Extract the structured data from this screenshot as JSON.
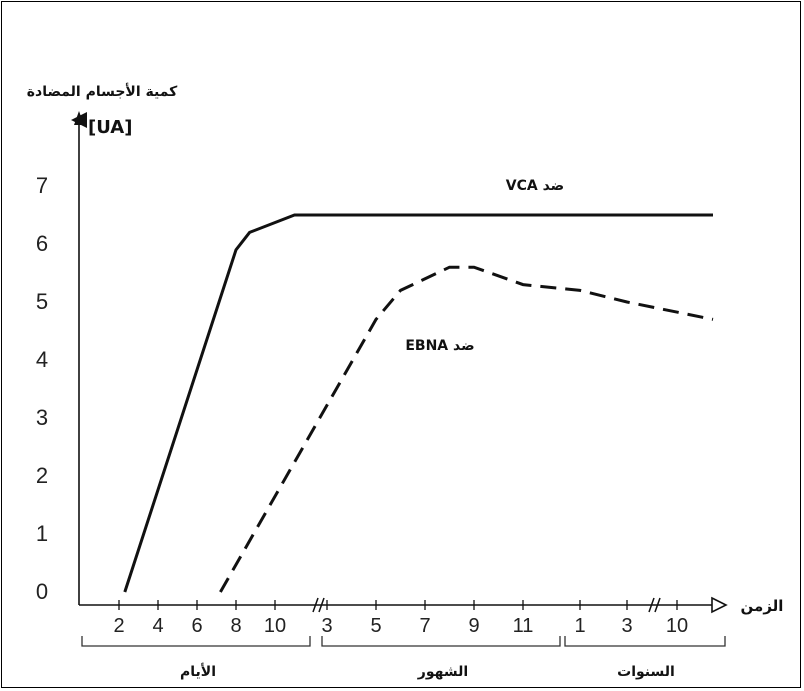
{
  "chart_data": {
    "type": "line",
    "ylabel": "كمية الأجسام المضادة",
    "yunit": "[UA]",
    "xlabel": "الزمن",
    "ylim": [
      0,
      7
    ],
    "yticks": [
      0,
      1,
      2,
      3,
      4,
      5,
      6,
      7
    ],
    "x_segments": [
      {
        "name": "الأيام",
        "ticks": [
          "2",
          "4",
          "6",
          "8",
          "10"
        ]
      },
      {
        "name": "الشهور",
        "ticks": [
          "3",
          "5",
          "7",
          "9",
          "11"
        ]
      },
      {
        "name": "السنوات",
        "ticks": [
          "1",
          "3",
          "10"
        ]
      }
    ],
    "series": [
      {
        "name": "ضد VCA",
        "style": "solid",
        "points": [
          [
            2.3,
            0
          ],
          [
            8,
            5.9
          ],
          [
            8.7,
            6.2
          ],
          [
            11,
            6.5
          ],
          [
            12,
            6.5
          ],
          [
            10.8,
            6.5
          ]
        ]
      },
      {
        "name": "ضد EBNA",
        "style": "dashed",
        "points": [
          [
            7.2,
            0
          ],
          [
            5,
            4.7
          ],
          [
            6,
            5.2
          ],
          [
            8,
            5.6
          ],
          [
            9,
            5.6
          ],
          [
            11,
            5.3
          ],
          [
            1,
            5.2
          ],
          [
            3,
            5.0
          ],
          [
            10.8,
            4.7
          ]
        ]
      }
    ]
  }
}
